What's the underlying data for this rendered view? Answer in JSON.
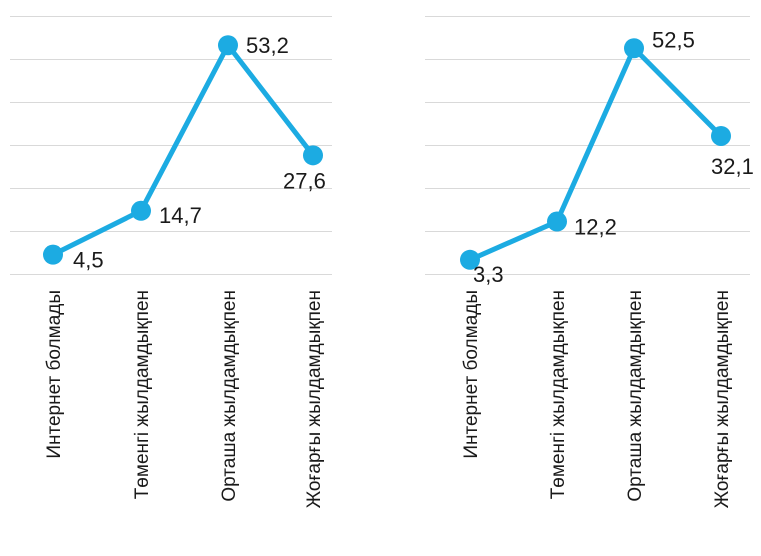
{
  "chart_data": [
    {
      "type": "line",
      "categories": [
        "Интернет болмады",
        "Төменгі жылдамдықпен",
        "Орташа жылдамдықпен",
        "Жоғарғы жылдамдықпен"
      ],
      "series": [
        {
          "values": [
            4.5,
            14.7,
            53.2,
            27.6
          ]
        }
      ],
      "data_labels": [
        "4,5",
        "14,7",
        "53,2",
        "27,6"
      ],
      "title": "",
      "xlabel": "",
      "ylabel": "",
      "ylim": [
        0,
        60
      ],
      "grid": true,
      "y_tick_labels_shown": false,
      "legend": "none",
      "line_color": "#1cabe2"
    },
    {
      "type": "line",
      "categories": [
        "Интернет болмады",
        "Төменгі жылдамдықпен",
        "Орташа жылдамдықпен",
        "Жоғарғы жылдамдықпен"
      ],
      "series": [
        {
          "values": [
            3.3,
            12.2,
            52.5,
            32.1
          ]
        }
      ],
      "data_labels": [
        "3,3",
        "12,2",
        "52,5",
        "32,1"
      ],
      "title": "",
      "xlabel": "",
      "ylabel": "",
      "ylim": [
        0,
        60
      ],
      "grid": true,
      "y_tick_labels_shown": false,
      "legend": "none",
      "line_color": "#1cabe2"
    }
  ]
}
